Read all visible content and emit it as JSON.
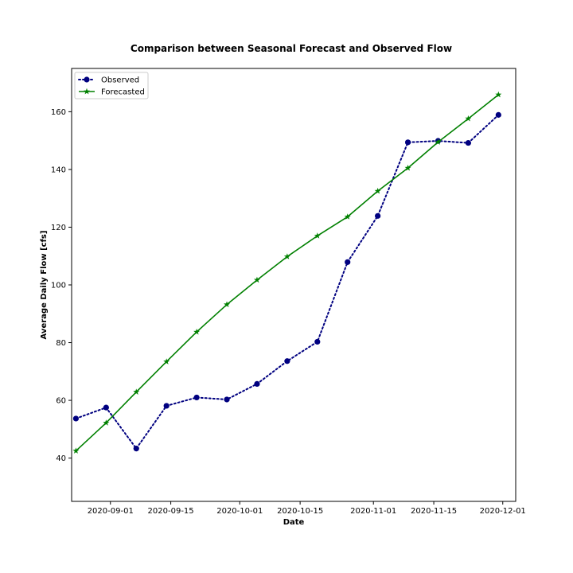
{
  "chart_data": {
    "type": "line",
    "title": "Comparison between Seasonal Forecast and Observed Flow",
    "xlabel": "Date",
    "ylabel": "Average Daily Flow [cfs]",
    "xlim": [
      "2020-08-23",
      "2020-12-04"
    ],
    "ylim": [
      25,
      175
    ],
    "x_ticks": [
      {
        "date": "2020-09-01",
        "label": "2020-09-01"
      },
      {
        "date": "2020-09-15",
        "label": "2020-09-15"
      },
      {
        "date": "2020-10-01",
        "label": "2020-10-01"
      },
      {
        "date": "2020-10-15",
        "label": "2020-10-15"
      },
      {
        "date": "2020-11-01",
        "label": "2020-11-01"
      },
      {
        "date": "2020-11-15",
        "label": "2020-11-15"
      },
      {
        "date": "2020-12-01",
        "label": "2020-12-01"
      }
    ],
    "y_ticks": [
      40,
      60,
      80,
      100,
      120,
      140,
      160
    ],
    "grid": false,
    "legend": "top-left",
    "series": [
      {
        "name": "Observed",
        "color": "#000080",
        "line_style": "dotted",
        "marker": "circle",
        "x": [
          "2020-08-24",
          "2020-08-31",
          "2020-09-07",
          "2020-09-14",
          "2020-09-21",
          "2020-09-28",
          "2020-10-05",
          "2020-10-12",
          "2020-10-19",
          "2020-10-26",
          "2020-11-02",
          "2020-11-09",
          "2020-11-16",
          "2020-11-23",
          "2020-11-30"
        ],
        "y": [
          53.7,
          57.5,
          43.3,
          58.1,
          61.0,
          60.3,
          65.7,
          73.6,
          80.3,
          107.9,
          123.9,
          149.4,
          149.9,
          149.2,
          158.9
        ]
      },
      {
        "name": "Forecasted",
        "color": "#008000",
        "line_style": "solid",
        "marker": "star",
        "x": [
          "2020-08-24",
          "2020-08-31",
          "2020-09-07",
          "2020-09-14",
          "2020-09-21",
          "2020-09-28",
          "2020-10-05",
          "2020-10-12",
          "2020-10-19",
          "2020-10-26",
          "2020-11-02",
          "2020-11-09",
          "2020-11-16",
          "2020-11-23",
          "2020-11-30"
        ],
        "y": [
          42.5,
          52.2,
          62.9,
          73.4,
          83.7,
          93.2,
          101.7,
          109.8,
          117.0,
          123.6,
          132.5,
          140.5,
          149.5,
          157.6,
          165.9
        ]
      }
    ]
  }
}
